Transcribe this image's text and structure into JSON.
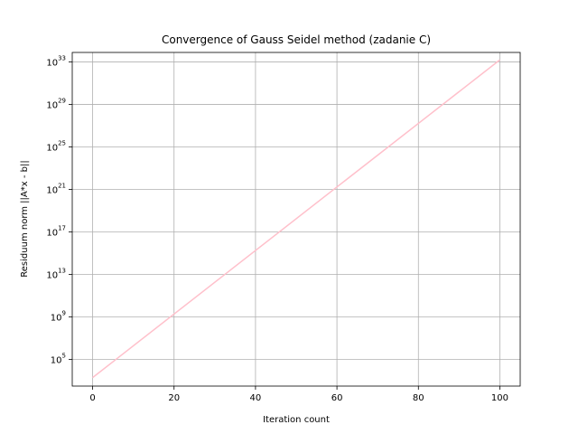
{
  "chart_data": {
    "type": "line",
    "title": "Convergence of Gauss Seidel method (zadanie C)",
    "xlabel": "Iteration count",
    "ylabel": "Residuum norm ||A*x - b||",
    "xlim": [
      -5,
      105
    ],
    "ylim_log10": [
      2.5,
      33.9
    ],
    "yscale": "log",
    "x_ticks": [
      0,
      20,
      40,
      60,
      80,
      100
    ],
    "y_ticks": [
      {
        "base": "10",
        "exp": "5",
        "value_log10": 5
      },
      {
        "base": "10",
        "exp": "9",
        "value_log10": 9
      },
      {
        "base": "10",
        "exp": "13",
        "value_log10": 13
      },
      {
        "base": "10",
        "exp": "17",
        "value_log10": 17
      },
      {
        "base": "10",
        "exp": "21",
        "value_log10": 21
      },
      {
        "base": "10",
        "exp": "25",
        "value_log10": 25
      },
      {
        "base": "10",
        "exp": "29",
        "value_log10": 29
      },
      {
        "base": "10",
        "exp": "33",
        "value_log10": 33
      }
    ],
    "grid": true,
    "series": [
      {
        "color": "#ffc0cb",
        "x": [
          0,
          100
        ],
        "y_log10": [
          3.3,
          33.2
        ]
      }
    ]
  }
}
